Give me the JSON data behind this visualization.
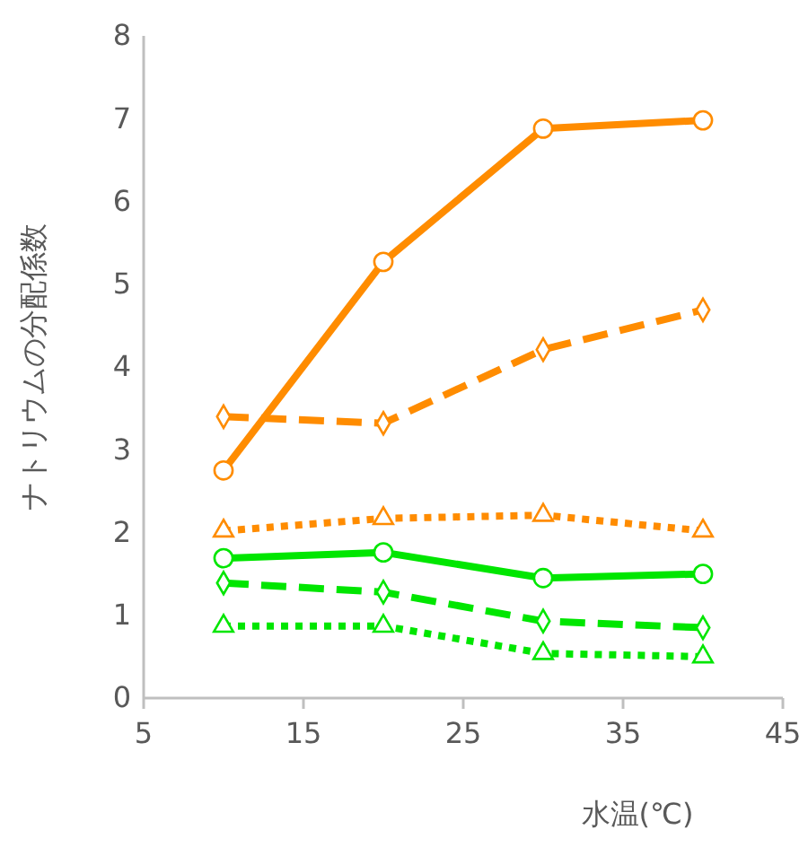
{
  "chart_data": {
    "type": "line",
    "xlabel": "水温(℃)",
    "ylabel": "ナトリウムの分配係数",
    "x": [
      10,
      20,
      30,
      40
    ],
    "xlim": [
      5,
      45
    ],
    "xticks": [
      5,
      15,
      25,
      35,
      45
    ],
    "ylim": [
      0,
      8
    ],
    "yticks": [
      0,
      1,
      2,
      3,
      4,
      5,
      6,
      7,
      8
    ],
    "grid": false,
    "series": [
      {
        "color": "#ff8c00",
        "marker": "circle",
        "line_style": "solid",
        "values": [
          2.75,
          5.27,
          6.88,
          6.98
        ]
      },
      {
        "color": "#ff8c00",
        "marker": "diamond",
        "line_style": "dashed",
        "values": [
          3.4,
          3.32,
          4.21,
          4.69
        ]
      },
      {
        "color": "#ff8c00",
        "marker": "triangle",
        "line_style": "dotted",
        "values": [
          2.02,
          2.17,
          2.21,
          2.02
        ]
      },
      {
        "color": "#00e600",
        "marker": "circle",
        "line_style": "solid",
        "values": [
          1.69,
          1.76,
          1.45,
          1.5
        ]
      },
      {
        "color": "#00e600",
        "marker": "diamond",
        "line_style": "dashed",
        "values": [
          1.39,
          1.28,
          0.93,
          0.85
        ]
      },
      {
        "color": "#00e600",
        "marker": "triangle",
        "line_style": "dotted",
        "values": [
          0.87,
          0.87,
          0.54,
          0.5
        ]
      }
    ]
  }
}
